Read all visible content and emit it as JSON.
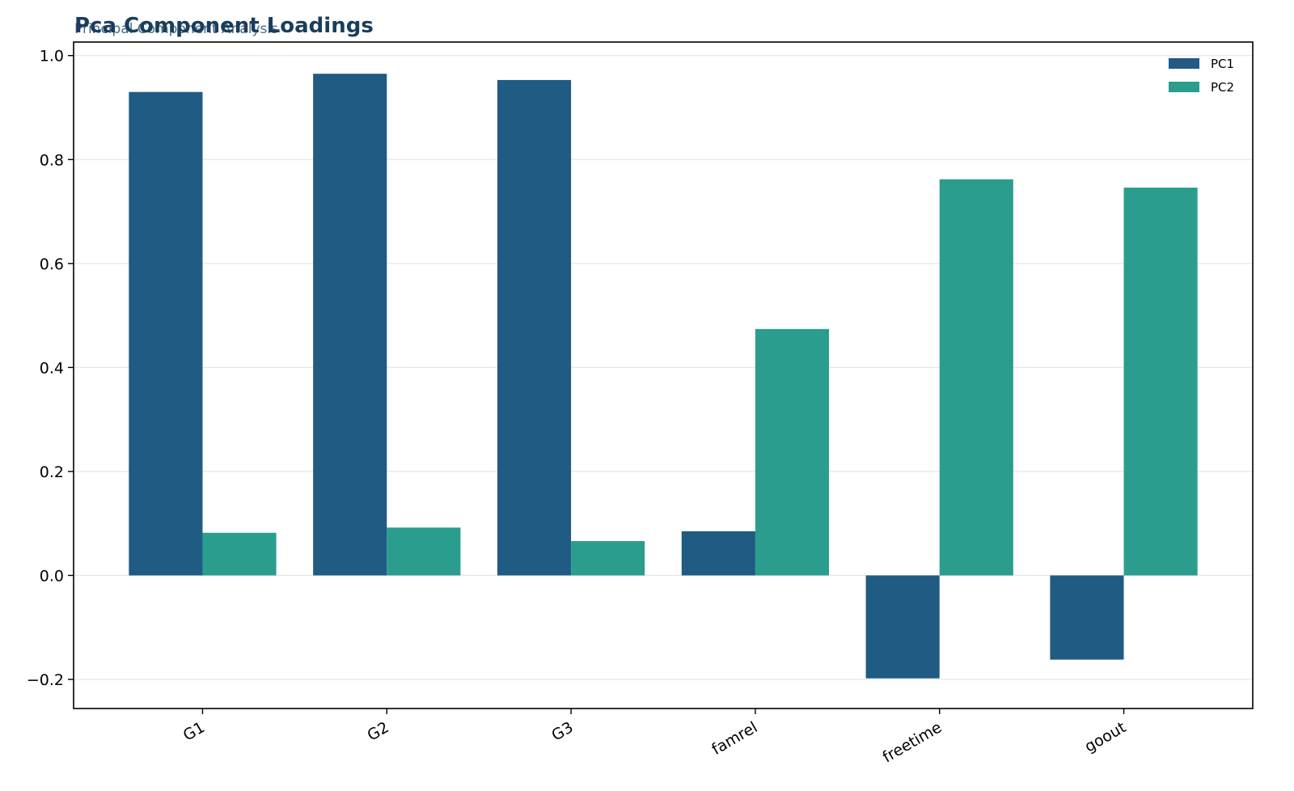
{
  "colors": {
    "pc1": "#1f5b83",
    "pc2": "#2a9d8f",
    "title": "#1a3d5c",
    "subtitle": "#4a6a85",
    "grid": "#e6e6e6"
  },
  "chart_data": {
    "type": "bar",
    "title": "Pca Component Loadings",
    "subtitle": "Principal Component Analysis",
    "xlabel": "",
    "ylabel": "",
    "categories": [
      "G1",
      "G2",
      "G3",
      "famrel",
      "freetime",
      "goout"
    ],
    "series": [
      {
        "name": "PC1",
        "values": [
          0.93,
          0.965,
          0.953,
          0.085,
          -0.198,
          -0.162
        ]
      },
      {
        "name": "PC2",
        "values": [
          0.082,
          0.092,
          0.066,
          0.474,
          0.762,
          0.746
        ]
      }
    ],
    "ylim": [
      -0.256,
      1.026
    ],
    "yticks": [
      {
        "value": -0.2,
        "label": "−0.2"
      },
      {
        "value": 0.0,
        "label": "0.0"
      },
      {
        "value": 0.2,
        "label": "0.2"
      },
      {
        "value": 0.4,
        "label": "0.4"
      },
      {
        "value": 0.6,
        "label": "0.6"
      },
      {
        "value": 0.8,
        "label": "0.8"
      },
      {
        "value": 1.0,
        "label": "1.0"
      }
    ],
    "grid": true,
    "legend_position": "top-right"
  }
}
